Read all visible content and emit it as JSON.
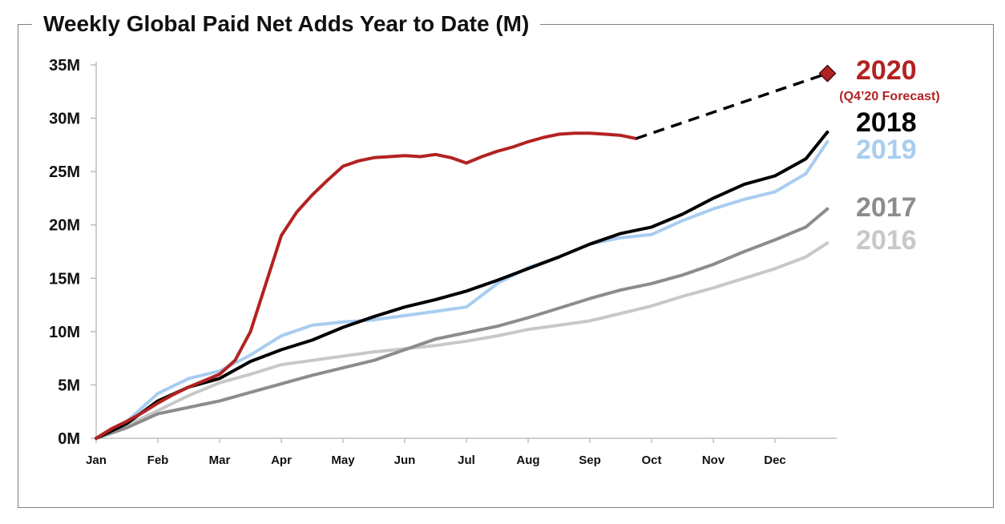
{
  "chart_data": {
    "type": "line",
    "title": "Weekly Global Paid Net Adds Year to Date (M)",
    "xlabel": "",
    "ylabel": "",
    "ylim": [
      0,
      35
    ],
    "y_ticks": [
      "0M",
      "5M",
      "10M",
      "15M",
      "20M",
      "25M",
      "30M",
      "35M"
    ],
    "x_ticks": [
      "Jan",
      "Feb",
      "Mar",
      "Apr",
      "May",
      "Jun",
      "Jul",
      "Aug",
      "Sep",
      "Oct",
      "Nov",
      "Dec"
    ],
    "grid": false,
    "legend": "right side, labels next to line ends",
    "x_unit": "month of year (0 = Jan 1, 12 = Dec 31)",
    "series": [
      {
        "name": "2016",
        "color": "#c8c8c8",
        "x": [
          0,
          0.5,
          1,
          1.5,
          2,
          2.5,
          3,
          3.5,
          4,
          4.5,
          5,
          5.5,
          6,
          6.5,
          7,
          7.5,
          8,
          8.5,
          9,
          9.5,
          10,
          10.5,
          11,
          11.5,
          11.85
        ],
        "y": [
          0,
          1.2,
          2.6,
          4.0,
          5.2,
          6.0,
          6.9,
          7.3,
          7.7,
          8.1,
          8.4,
          8.7,
          9.1,
          9.6,
          10.2,
          10.6,
          11.0,
          11.7,
          12.4,
          13.3,
          14.1,
          15.0,
          15.9,
          17.0,
          18.3
        ]
      },
      {
        "name": "2017",
        "color": "#8c8c8c",
        "x": [
          0,
          0.5,
          1,
          1.5,
          2,
          2.5,
          3,
          3.5,
          4,
          4.5,
          5,
          5.5,
          6,
          6.5,
          7,
          7.5,
          8,
          8.5,
          9,
          9.5,
          10,
          10.5,
          11,
          11.5,
          11.85
        ],
        "y": [
          0,
          1.0,
          2.3,
          2.9,
          3.5,
          4.3,
          5.1,
          5.9,
          6.6,
          7.3,
          8.3,
          9.3,
          9.9,
          10.5,
          11.3,
          12.2,
          13.1,
          13.9,
          14.5,
          15.3,
          16.3,
          17.5,
          18.6,
          19.8,
          21.5
        ]
      },
      {
        "name": "2019",
        "color": "#a8cdf0",
        "x": [
          0,
          0.5,
          1,
          1.5,
          2,
          2.5,
          3,
          3.5,
          4,
          4.5,
          5,
          5.5,
          6,
          6.5,
          7,
          7.5,
          8,
          8.5,
          9,
          9.5,
          10,
          10.5,
          11,
          11.5,
          11.85
        ],
        "y": [
          0,
          1.6,
          4.2,
          5.6,
          6.3,
          7.8,
          9.6,
          10.6,
          10.9,
          11.1,
          11.5,
          11.9,
          12.3,
          14.5,
          16.0,
          17.0,
          18.2,
          18.8,
          19.1,
          20.4,
          21.5,
          22.4,
          23.1,
          24.8,
          27.8
        ]
      },
      {
        "name": "2018",
        "color": "#000000",
        "x": [
          0,
          0.5,
          1,
          1.5,
          2,
          2.5,
          3,
          3.5,
          4,
          4.5,
          5,
          5.5,
          6,
          6.5,
          7,
          7.5,
          8,
          8.5,
          9,
          9.5,
          10,
          10.5,
          11,
          11.5,
          11.85
        ],
        "y": [
          0,
          1.4,
          3.5,
          4.8,
          5.6,
          7.2,
          8.3,
          9.2,
          10.4,
          11.4,
          12.3,
          13.0,
          13.8,
          14.8,
          15.9,
          17.0,
          18.2,
          19.2,
          19.8,
          21.0,
          22.5,
          23.8,
          24.6,
          26.2,
          28.7
        ]
      },
      {
        "name": "2020",
        "color": "#b22222",
        "x": [
          0,
          0.25,
          0.5,
          0.75,
          1,
          1.25,
          1.5,
          1.75,
          2,
          2.25,
          2.5,
          2.75,
          3,
          3.25,
          3.5,
          3.75,
          4,
          4.25,
          4.5,
          4.75,
          5,
          5.25,
          5.5,
          5.75,
          6,
          6.25,
          6.5,
          6.75,
          7,
          7.25,
          7.5,
          7.75,
          8,
          8.25,
          8.5,
          8.75
        ],
        "y": [
          0,
          0.9,
          1.6,
          2.4,
          3.3,
          4.1,
          4.8,
          5.4,
          6.0,
          7.3,
          10.0,
          14.5,
          19.0,
          21.2,
          22.8,
          24.2,
          25.5,
          26.0,
          26.3,
          26.4,
          26.5,
          26.4,
          26.6,
          26.3,
          25.8,
          26.4,
          26.9,
          27.3,
          27.8,
          28.2,
          28.5,
          28.6,
          28.6,
          28.5,
          28.4,
          28.1
        ]
      }
    ],
    "forecast": {
      "name": "2020",
      "note": "(Q4’20 Forecast)",
      "color": "#b22222",
      "style": "dashed",
      "x": [
        8.75,
        11.85
      ],
      "y": [
        28.1,
        34.2
      ],
      "marker": "diamond"
    },
    "end_labels": [
      {
        "text": "2020",
        "color": "#b22222",
        "note": "(Q4’20 Forecast)"
      },
      {
        "text": "2018",
        "color": "#000000"
      },
      {
        "text": "2019",
        "color": "#a8cdf0"
      },
      {
        "text": "2017",
        "color": "#8c8c8c"
      },
      {
        "text": "2016",
        "color": "#c8c8c8"
      }
    ]
  }
}
